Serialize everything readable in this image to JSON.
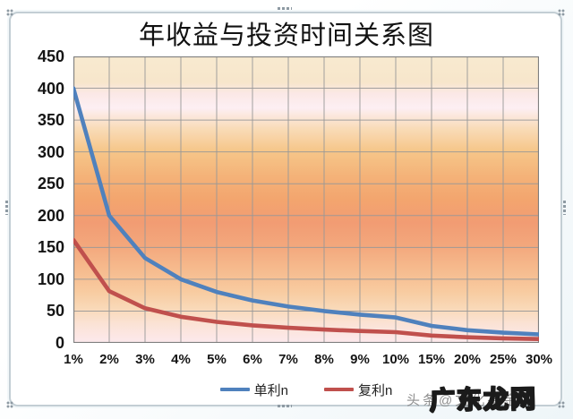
{
  "chart_data": {
    "type": "line",
    "title": "年收益与投资时间关系图",
    "categories": [
      "1%",
      "2%",
      "3%",
      "4%",
      "5%",
      "6%",
      "7%",
      "8%",
      "9%",
      "10%",
      "15%",
      "20%",
      "25%",
      "30%"
    ],
    "series": [
      {
        "name": "单利n",
        "color": "#4f81bd",
        "values": [
          400,
          200,
          133.3,
          100,
          80,
          66.7,
          57.1,
          50,
          44.4,
          40,
          26.7,
          20,
          16,
          13.3
        ]
      },
      {
        "name": "复利n",
        "color": "#c0504d",
        "values": [
          161.7,
          81.3,
          54.4,
          41,
          33,
          27.6,
          23.8,
          20.9,
          18.7,
          16.9,
          11.5,
          8.8,
          7.2,
          6.1
        ]
      }
    ],
    "y_ticks": [
      450,
      400,
      350,
      300,
      250,
      200,
      150,
      100,
      50,
      0
    ],
    "ylim": [
      0,
      450
    ],
    "xlabel": "",
    "ylabel": "",
    "grid": true,
    "legend_position": "bottom",
    "grid_color": "#989898",
    "plot_border_color": "#7f7f7f"
  },
  "watermark": {
    "small_text": "头条@文化基金",
    "large_text": "广东龙网"
  }
}
